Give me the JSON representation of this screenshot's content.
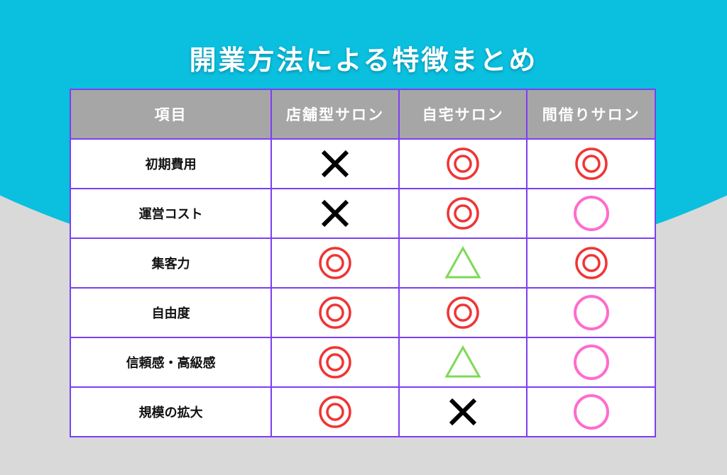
{
  "title": "開業方法による特徴まとめ",
  "colors": {
    "background_top": "#0bbfdf",
    "background_bottom": "#d9d9d9",
    "border": "#7b3ff2",
    "header": "#a6a6a6",
    "double_circle": "#f03535",
    "circle": "#ff6ccc",
    "triangle": "#7ed957",
    "cross": "#000000"
  },
  "headers": [
    "項目",
    "店舗型サロン",
    "自宅サロン",
    "間借りサロン"
  ],
  "rows": [
    {
      "label": "初期費用",
      "values": [
        "cross",
        "double-circle",
        "double-circle"
      ]
    },
    {
      "label": "運営コスト",
      "values": [
        "cross",
        "double-circle",
        "circle"
      ]
    },
    {
      "label": "集客力",
      "values": [
        "double-circle",
        "triangle",
        "double-circle"
      ]
    },
    {
      "label": "自由度",
      "values": [
        "double-circle",
        "double-circle",
        "circle"
      ]
    },
    {
      "label": "信頼感・高級感",
      "values": [
        "double-circle",
        "triangle",
        "circle"
      ]
    },
    {
      "label": "規模の拡大",
      "values": [
        "double-circle",
        "cross",
        "circle"
      ]
    }
  ]
}
